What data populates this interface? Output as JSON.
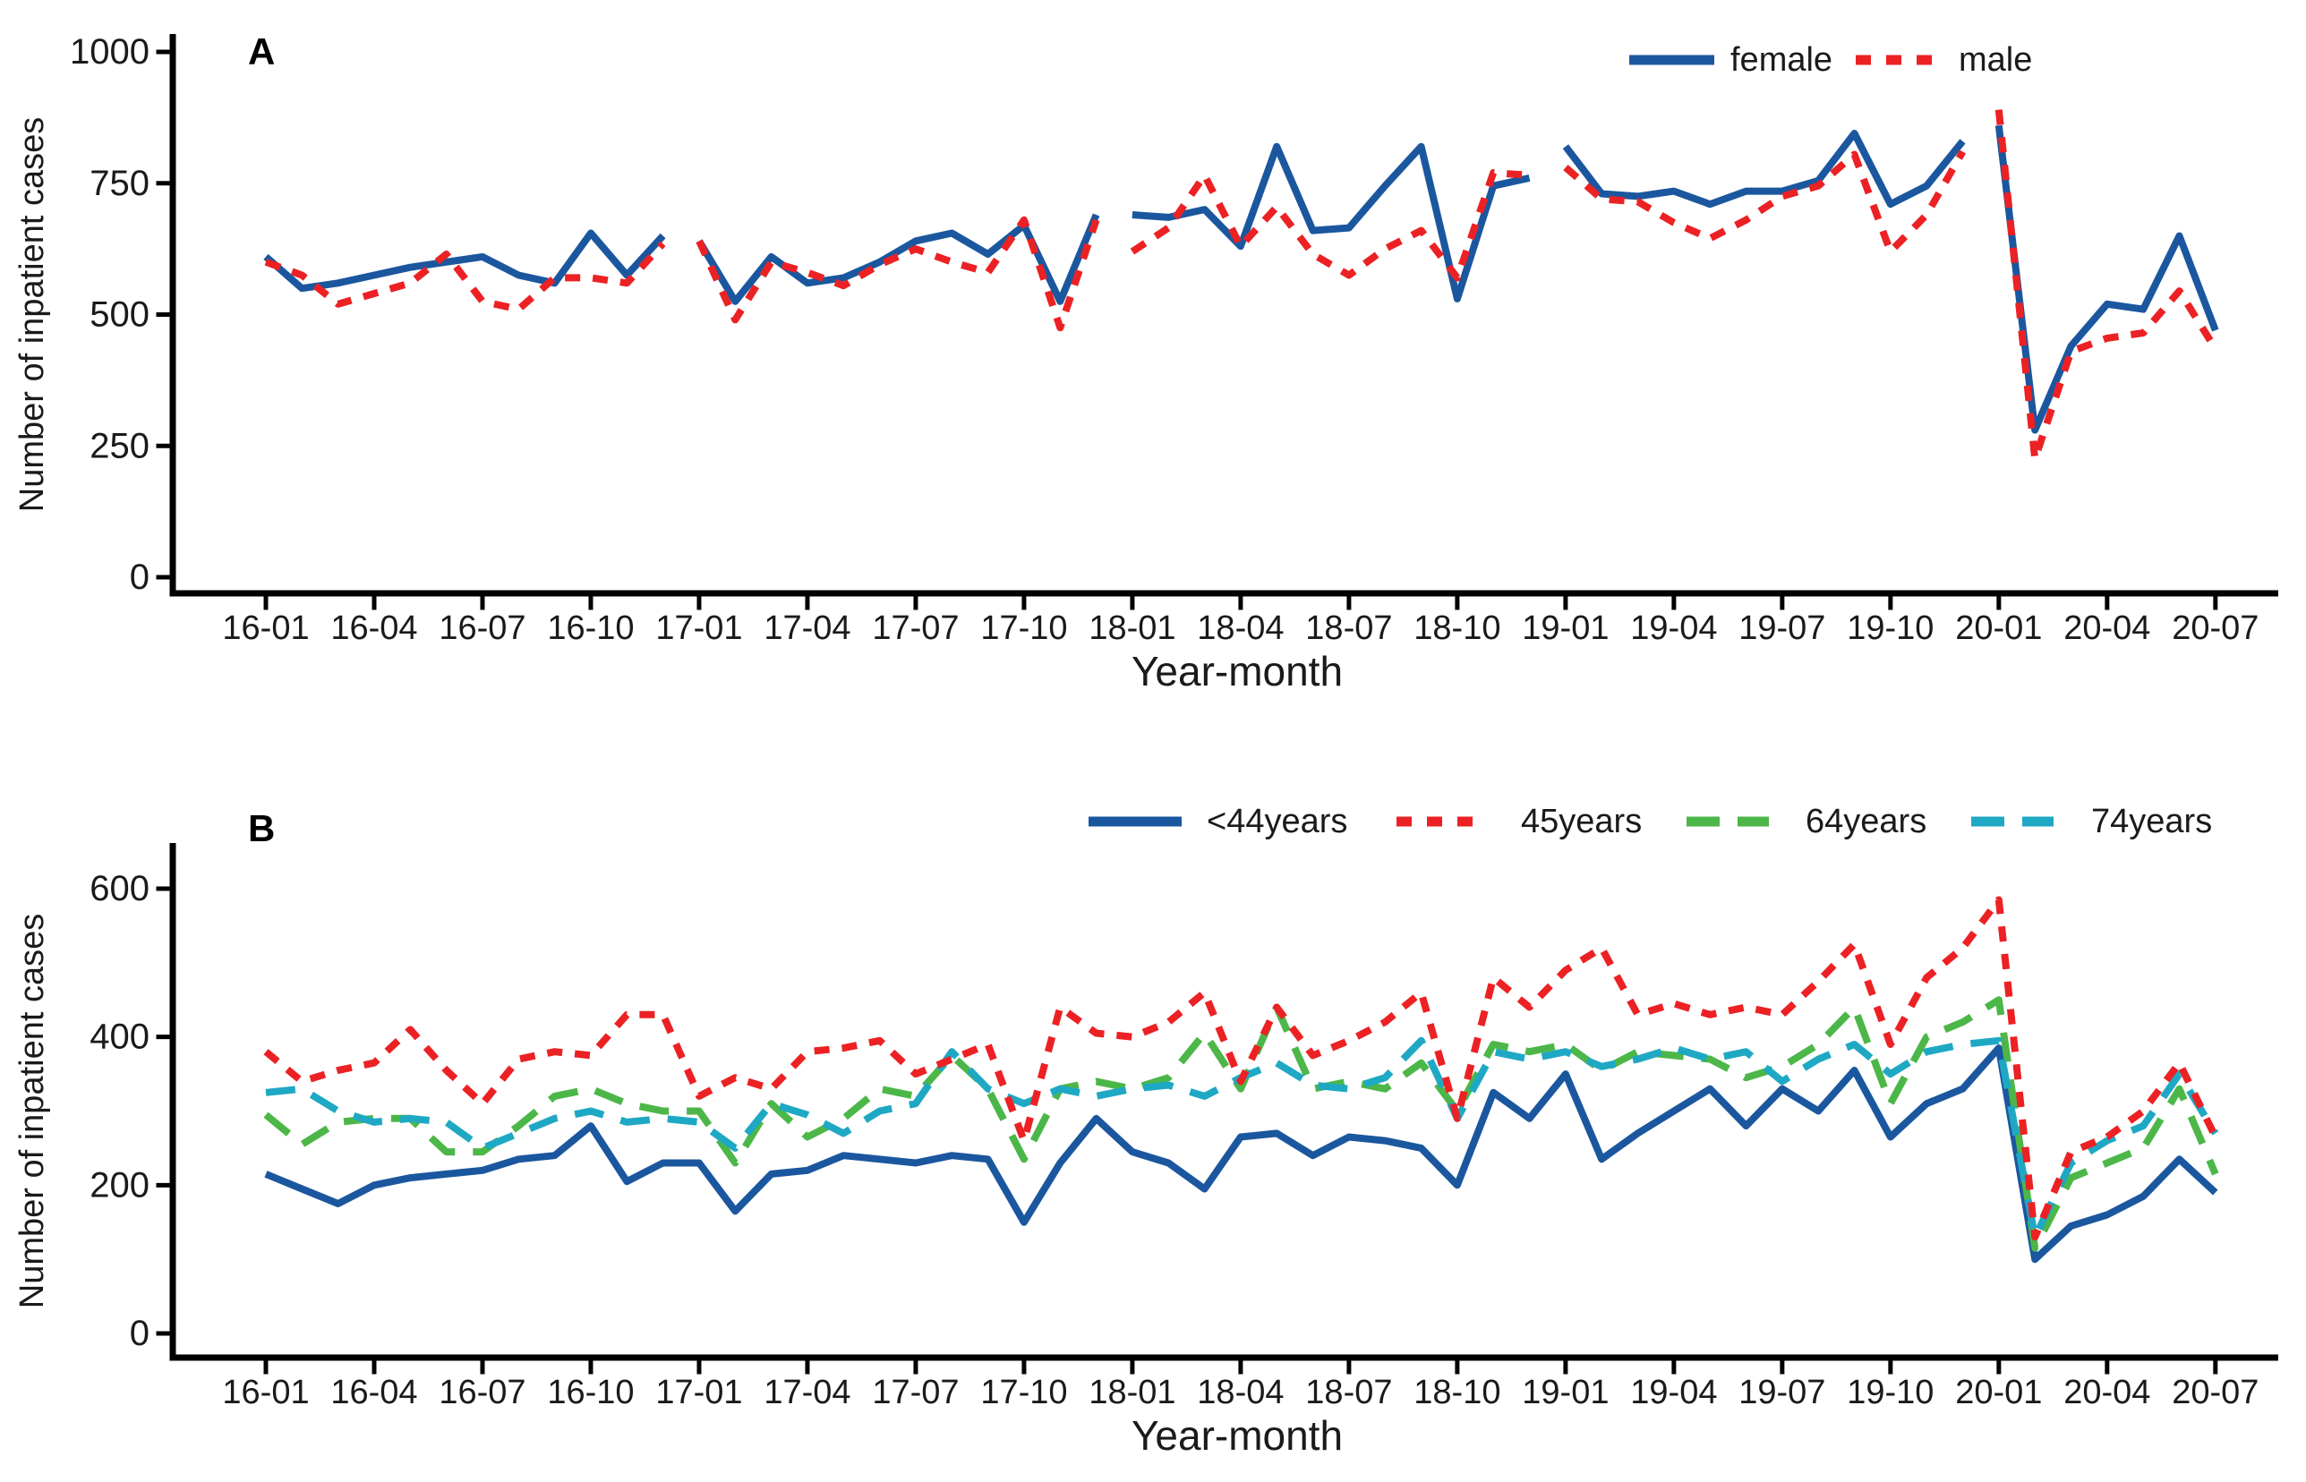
{
  "chart_data": [
    {
      "panel": "A",
      "type": "line",
      "xlabel": "Year-month",
      "ylabel": "Number of inpatient cases",
      "ylim": [
        0,
        1000
      ],
      "y_ticks": [
        0,
        250,
        500,
        750,
        1000
      ],
      "grid": false,
      "legend_position": "top-right-inside",
      "lines_broken_between_years": true,
      "x_tick_every": 3,
      "x_tick_labels": [
        "16-01",
        "16-04",
        "16-07",
        "16-10",
        "17-01",
        "17-04",
        "17-07",
        "17-10",
        "18-01",
        "18-04",
        "18-07",
        "18-10",
        "19-01",
        "19-04",
        "19-07",
        "19-10",
        "20-01",
        "20-04",
        "20-07"
      ],
      "x_months": [
        "16-01",
        "16-02",
        "16-03",
        "16-04",
        "16-05",
        "16-06",
        "16-07",
        "16-08",
        "16-09",
        "16-10",
        "16-11",
        "16-12",
        "17-01",
        "17-02",
        "17-03",
        "17-04",
        "17-05",
        "17-06",
        "17-07",
        "17-08",
        "17-09",
        "17-10",
        "17-11",
        "17-12",
        "18-01",
        "18-02",
        "18-03",
        "18-04",
        "18-05",
        "18-06",
        "18-07",
        "18-08",
        "18-09",
        "18-10",
        "18-11",
        "18-12",
        "19-01",
        "19-02",
        "19-03",
        "19-04",
        "19-05",
        "19-06",
        "19-07",
        "19-08",
        "19-09",
        "19-10",
        "19-11",
        "19-12",
        "20-01",
        "20-02",
        "20-03",
        "20-04",
        "20-05",
        "20-06",
        "20-07"
      ],
      "series": [
        {
          "name": "female",
          "color": "#1b579e",
          "style": "solid",
          "values": [
            610,
            550,
            560,
            575,
            590,
            600,
            610,
            575,
            560,
            655,
            575,
            650,
            640,
            525,
            610,
            560,
            570,
            600,
            640,
            655,
            615,
            670,
            525,
            690,
            690,
            685,
            700,
            630,
            820,
            660,
            665,
            745,
            820,
            530,
            745,
            760,
            820,
            730,
            725,
            735,
            710,
            735,
            735,
            755,
            845,
            710,
            745,
            830,
            860,
            280,
            440,
            520,
            510,
            650,
            470
          ]
        },
        {
          "name": "male",
          "color": "#ec2124",
          "style": "dashed-short",
          "values": [
            600,
            575,
            520,
            540,
            560,
            615,
            525,
            510,
            570,
            570,
            560,
            635,
            640,
            490,
            600,
            580,
            555,
            595,
            625,
            600,
            580,
            680,
            475,
            680,
            620,
            665,
            765,
            630,
            705,
            615,
            575,
            625,
            660,
            570,
            770,
            765,
            780,
            720,
            715,
            675,
            645,
            680,
            725,
            745,
            805,
            620,
            690,
            810,
            890,
            225,
            430,
            455,
            465,
            545,
            435
          ]
        }
      ]
    },
    {
      "panel": "B",
      "type": "line",
      "xlabel": "Year-month",
      "ylabel": "Number of inpatient cases",
      "ylim": [
        0,
        600
      ],
      "y_ticks": [
        0,
        200,
        400,
        600
      ],
      "grid": false,
      "legend_position": "top-inside",
      "lines_broken_between_years": false,
      "x_tick_every": 3,
      "x_tick_labels": [
        "16-01",
        "16-04",
        "16-07",
        "16-10",
        "17-01",
        "17-04",
        "17-07",
        "17-10",
        "18-01",
        "18-04",
        "18-07",
        "18-10",
        "19-01",
        "19-04",
        "19-07",
        "19-10",
        "20-01",
        "20-04",
        "20-07"
      ],
      "x_months": [
        "16-01",
        "16-02",
        "16-03",
        "16-04",
        "16-05",
        "16-06",
        "16-07",
        "16-08",
        "16-09",
        "16-10",
        "16-11",
        "16-12",
        "17-01",
        "17-02",
        "17-03",
        "17-04",
        "17-05",
        "17-06",
        "17-07",
        "17-08",
        "17-09",
        "17-10",
        "17-11",
        "17-12",
        "18-01",
        "18-02",
        "18-03",
        "18-04",
        "18-05",
        "18-06",
        "18-07",
        "18-08",
        "18-09",
        "18-10",
        "18-11",
        "18-12",
        "19-01",
        "19-02",
        "19-03",
        "19-04",
        "19-05",
        "19-06",
        "19-07",
        "19-08",
        "19-09",
        "19-10",
        "19-11",
        "19-12",
        "20-01",
        "20-02",
        "20-03",
        "20-04",
        "20-05",
        "20-06",
        "20-07"
      ],
      "series": [
        {
          "name": "<44years",
          "color": "#1b579e",
          "style": "solid",
          "values": [
            215,
            195,
            175,
            200,
            210,
            215,
            220,
            235,
            240,
            280,
            205,
            230,
            230,
            165,
            215,
            220,
            240,
            235,
            230,
            240,
            235,
            150,
            230,
            290,
            245,
            230,
            195,
            265,
            270,
            240,
            265,
            260,
            250,
            200,
            325,
            290,
            350,
            235,
            270,
            300,
            330,
            280,
            330,
            300,
            355,
            265,
            310,
            330,
            385,
            100,
            145,
            160,
            185,
            235,
            190
          ]
        },
        {
          "name": "45years",
          "color": "#ec2124",
          "style": "dashed-short",
          "values": [
            380,
            340,
            355,
            365,
            410,
            355,
            310,
            370,
            380,
            375,
            430,
            430,
            320,
            345,
            330,
            380,
            385,
            395,
            350,
            370,
            390,
            260,
            440,
            405,
            400,
            420,
            460,
            340,
            440,
            375,
            395,
            420,
            460,
            290,
            480,
            440,
            490,
            520,
            430,
            445,
            430,
            440,
            430,
            475,
            525,
            390,
            480,
            520,
            585,
            130,
            245,
            265,
            300,
            365,
            265
          ]
        },
        {
          "name": "64years",
          "color": "#4cb748",
          "style": "dashed-long",
          "values": [
            295,
            255,
            285,
            290,
            290,
            245,
            245,
            280,
            320,
            330,
            310,
            300,
            300,
            230,
            310,
            265,
            290,
            330,
            320,
            375,
            330,
            235,
            330,
            340,
            330,
            345,
            405,
            330,
            440,
            330,
            340,
            330,
            365,
            300,
            390,
            380,
            390,
            355,
            380,
            375,
            370,
            345,
            360,
            390,
            440,
            310,
            400,
            420,
            450,
            115,
            210,
            230,
            250,
            330,
            215
          ]
        },
        {
          "name": "74years",
          "color": "#1fa8c4",
          "style": "dashed-long",
          "values": [
            325,
            330,
            300,
            285,
            290,
            285,
            250,
            270,
            290,
            300,
            285,
            290,
            285,
            250,
            310,
            295,
            270,
            300,
            310,
            380,
            330,
            310,
            330,
            320,
            330,
            335,
            320,
            345,
            365,
            335,
            330,
            345,
            395,
            290,
            380,
            370,
            380,
            360,
            370,
            385,
            370,
            380,
            340,
            370,
            390,
            350,
            380,
            390,
            395,
            130,
            230,
            260,
            280,
            350,
            270
          ]
        }
      ]
    }
  ]
}
